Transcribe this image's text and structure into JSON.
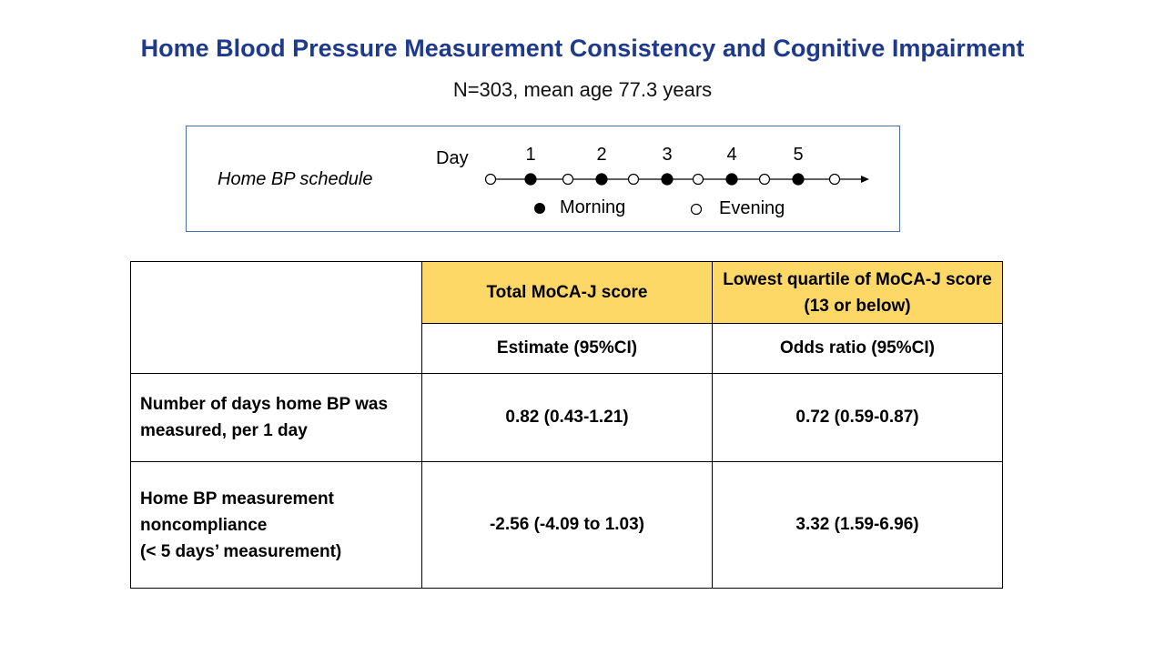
{
  "title": "Home Blood Pressure Measurement Consistency and Cognitive Impairment",
  "subtitle": "N=303, mean age 77.3 years",
  "schedule": {
    "label": "Home BP schedule",
    "day_label": "Day",
    "day_numbers": [
      "1",
      "2",
      "3",
      "4",
      "5"
    ],
    "sequence": [
      "evening",
      "morning",
      "evening",
      "morning",
      "evening",
      "morning",
      "evening",
      "morning",
      "evening",
      "morning",
      "evening"
    ],
    "legend_morning": "Morning",
    "legend_evening": "Evening"
  },
  "table": {
    "header_col1": "Total MoCA-J score",
    "header_col2": "Lowest quartile of MoCA-J score (13 or below)",
    "subheader_col1": "Estimate (95%CI)",
    "subheader_col2": "Odds ratio (95%CI)",
    "rows": [
      {
        "label": "Number of days home BP was measured, per 1 day",
        "col1": "0.82 (0.43-1.21)",
        "col2": "0.72 (0.59-0.87)"
      },
      {
        "label_line1": "Home BP measurement",
        "label_line2": "noncompliance",
        "label_line3": "(< 5 days’ measurement)",
        "col1": "-2.56 (-4.09 to 1.03)",
        "col2": "3.32 (1.59-6.96)"
      }
    ],
    "header_bg": "#fdd867"
  },
  "colors": {
    "title": "#1f3a8a",
    "box_border": "#4a6ea8"
  }
}
